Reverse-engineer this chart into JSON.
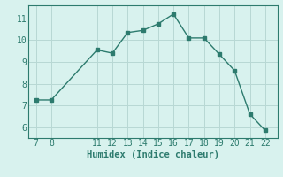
{
  "x": [
    7,
    8,
    11,
    12,
    13,
    14,
    15,
    16,
    17,
    18,
    19,
    20,
    21,
    22
  ],
  "y": [
    7.25,
    7.25,
    9.55,
    9.4,
    10.35,
    10.45,
    10.75,
    11.2,
    10.1,
    10.1,
    9.35,
    8.6,
    6.6,
    5.85
  ],
  "line_color": "#2d7b6e",
  "marker": "s",
  "marker_size": 2.5,
  "bg_color": "#d8f2ee",
  "grid_color": "#b8d8d4",
  "xlabel": "Humidex (Indice chaleur)",
  "xlim": [
    6.5,
    22.8
  ],
  "ylim": [
    5.5,
    11.6
  ],
  "xticks": [
    7,
    8,
    11,
    12,
    13,
    14,
    15,
    16,
    17,
    18,
    19,
    20,
    21,
    22
  ],
  "yticks": [
    6,
    7,
    8,
    9,
    10,
    11
  ],
  "tick_color": "#2d7b6e",
  "label_fontsize": 7.5,
  "tick_fontsize": 7
}
